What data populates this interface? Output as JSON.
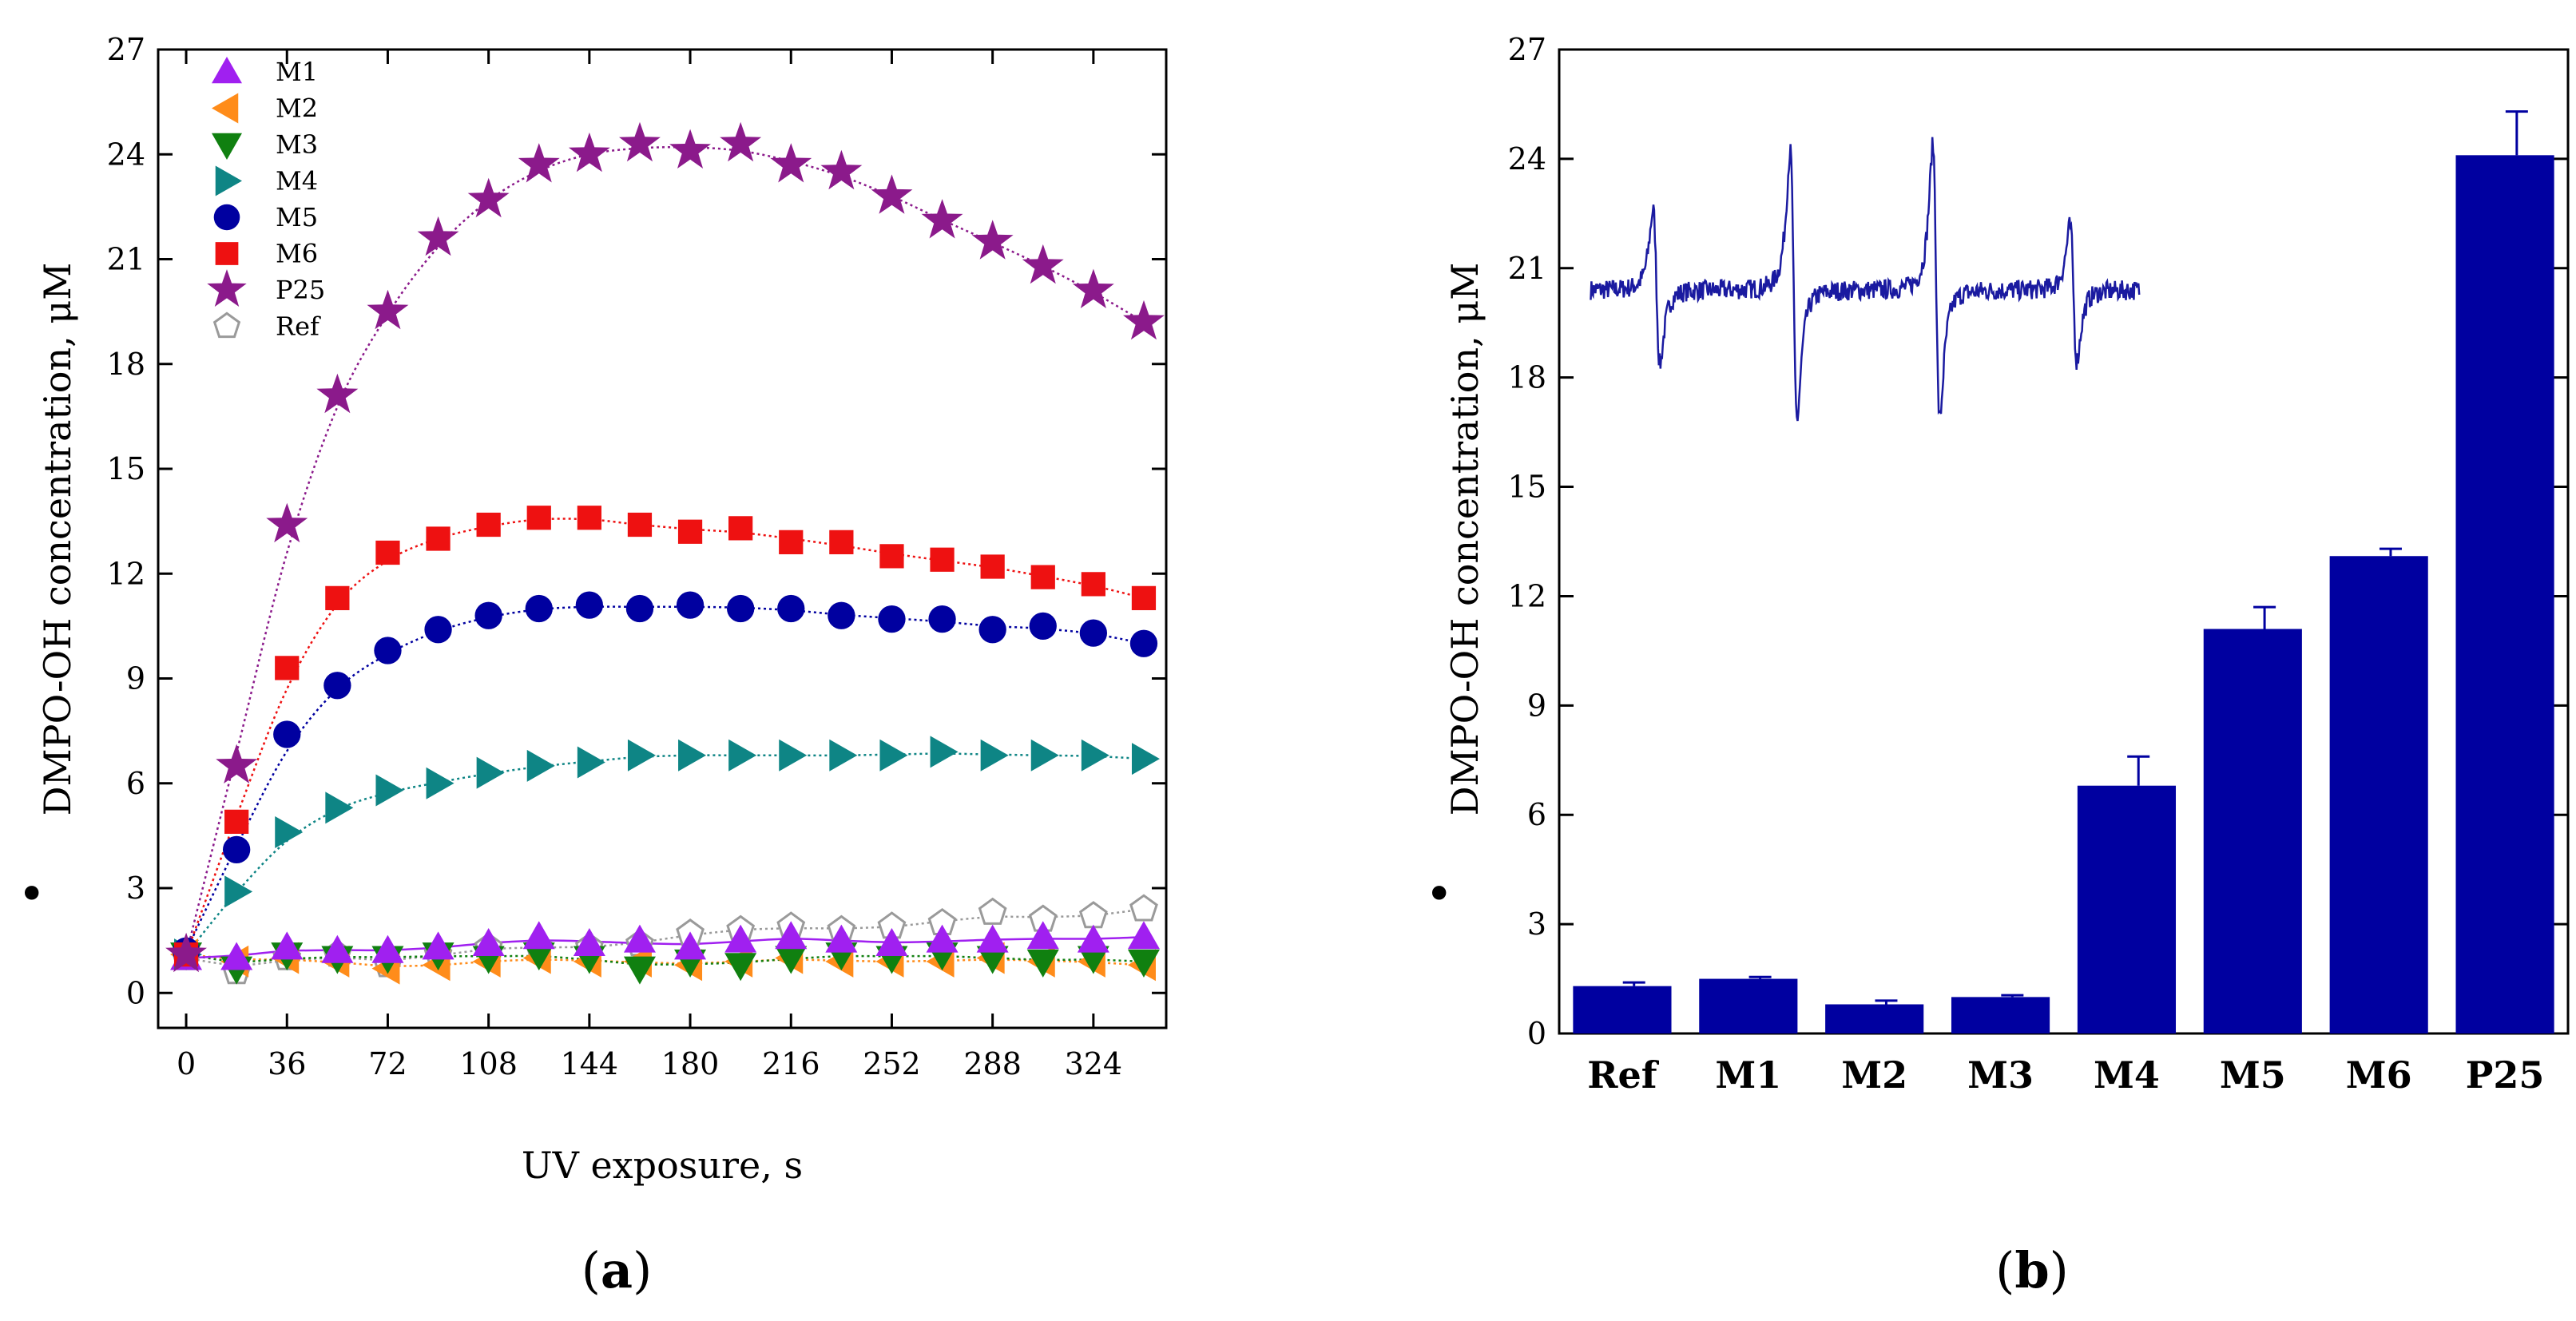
{
  "chart_data": [
    {
      "panel": "a",
      "type": "scatter",
      "panel_label": {
        "open": "(",
        "letter": "a",
        "close": ")"
      },
      "xlabel": "UV exposure, s",
      "ylabel": "DMPO-OH concentration, μM",
      "ylabel_prefix": "•",
      "xlim": [
        -10,
        350
      ],
      "ylim": [
        -1,
        27
      ],
      "xticks": [
        0,
        36,
        72,
        108,
        144,
        180,
        216,
        252,
        288,
        324
      ],
      "yticks": [
        0,
        3,
        6,
        9,
        12,
        15,
        18,
        21,
        24,
        27
      ],
      "x": [
        0,
        18,
        36,
        54,
        72,
        90,
        108,
        126,
        144,
        162,
        180,
        198,
        216,
        234,
        252,
        270,
        288,
        306,
        324,
        342
      ],
      "series": [
        {
          "name": "M1",
          "marker": "triangle-up",
          "color": "#a020f0",
          "line_style": "solid",
          "values": [
            1.0,
            1.0,
            1.3,
            1.2,
            1.2,
            1.3,
            1.4,
            1.6,
            1.4,
            1.5,
            1.3,
            1.5,
            1.6,
            1.5,
            1.4,
            1.5,
            1.5,
            1.6,
            1.5,
            1.6
          ]
        },
        {
          "name": "M2",
          "marker": "triangle-left",
          "color": "#ff8c1a",
          "line_style": "dotted",
          "values": [
            1.1,
            0.9,
            1.0,
            0.9,
            0.7,
            0.8,
            0.9,
            1.0,
            0.9,
            0.9,
            0.8,
            0.9,
            1.0,
            0.9,
            0.9,
            0.9,
            1.0,
            0.9,
            0.9,
            0.8
          ]
        },
        {
          "name": "M3",
          "marker": "triangle-down",
          "color": "#108010",
          "line_style": "dotted",
          "values": [
            1.1,
            0.7,
            1.1,
            1.0,
            1.0,
            1.1,
            1.0,
            1.1,
            1.0,
            0.7,
            0.9,
            0.8,
            1.0,
            1.1,
            1.0,
            1.1,
            1.0,
            0.9,
            1.0,
            0.9
          ]
        },
        {
          "name": "M4",
          "marker": "triangle-right",
          "color": "#0e8585",
          "line_style": "dotted",
          "values": [
            1.1,
            2.9,
            4.6,
            5.3,
            5.8,
            6.0,
            6.3,
            6.5,
            6.6,
            6.8,
            6.8,
            6.8,
            6.8,
            6.8,
            6.8,
            6.9,
            6.8,
            6.8,
            6.8,
            6.7
          ]
        },
        {
          "name": "M5",
          "marker": "circle",
          "color": "#0000a0",
          "line_style": "dotted",
          "values": [
            1.2,
            4.1,
            7.4,
            8.8,
            9.8,
            10.4,
            10.8,
            11.0,
            11.1,
            11.0,
            11.1,
            11.0,
            11.0,
            10.8,
            10.7,
            10.7,
            10.4,
            10.5,
            10.3,
            10.0
          ]
        },
        {
          "name": "M6",
          "marker": "square",
          "color": "#ee1111",
          "line_style": "dotted",
          "values": [
            1.1,
            4.9,
            9.3,
            11.3,
            12.6,
            13.0,
            13.4,
            13.6,
            13.6,
            13.4,
            13.2,
            13.3,
            12.9,
            12.9,
            12.5,
            12.4,
            12.2,
            11.9,
            11.7,
            11.3
          ]
        },
        {
          "name": "P25",
          "marker": "star",
          "color": "#8b1a8b",
          "line_style": "dotted",
          "values": [
            1.1,
            6.5,
            13.4,
            17.1,
            19.5,
            21.6,
            22.7,
            23.7,
            24.0,
            24.3,
            24.1,
            24.3,
            23.7,
            23.5,
            22.8,
            22.1,
            21.5,
            20.8,
            20.1,
            19.2
          ]
        },
        {
          "name": "Ref",
          "marker": "pentagon-open",
          "color": "#9a9a9a",
          "line_style": "dotted",
          "values": [
            1.0,
            0.6,
            1.0,
            1.1,
            0.8,
            1.1,
            1.3,
            1.3,
            1.3,
            1.4,
            1.7,
            1.8,
            1.9,
            1.8,
            1.9,
            2.0,
            2.3,
            2.1,
            2.2,
            2.4
          ]
        }
      ]
    },
    {
      "panel": "b",
      "type": "bar",
      "panel_label": {
        "open": "(",
        "letter": "b",
        "close": ")"
      },
      "xlabel": "",
      "ylabel": "DMPO-OH concentration, μM",
      "ylabel_prefix": "•",
      "ylim": [
        0,
        27
      ],
      "yticks": [
        0,
        3,
        6,
        9,
        12,
        15,
        18,
        21,
        24,
        27
      ],
      "bar_color": "#0000a0",
      "categories": [
        "Ref",
        "M1",
        "M2",
        "M3",
        "M4",
        "M5",
        "M6",
        "P25"
      ],
      "values": [
        1.3,
        1.5,
        0.8,
        1.0,
        6.8,
        11.1,
        13.1,
        24.1
      ],
      "errors": [
        0.1,
        0.05,
        0.1,
        0.05,
        0.8,
        0.6,
        0.2,
        1.2
      ],
      "inset": {
        "description": "EPR spectrum of DMPO-OH adduct (1:2:2:1 quartet)",
        "color": "#1a1aa0",
        "baseline": 20.4,
        "lines": [
          {
            "position": 0.12,
            "up": 2.6,
            "down": 2.4
          },
          {
            "position": 0.37,
            "up": 4.5,
            "down": 4.2
          },
          {
            "position": 0.63,
            "up": 4.7,
            "down": 4.2
          },
          {
            "position": 0.88,
            "up": 2.1,
            "down": 2.3
          }
        ],
        "x_range_categories": [
          0.25,
          4.6
        ]
      }
    }
  ]
}
